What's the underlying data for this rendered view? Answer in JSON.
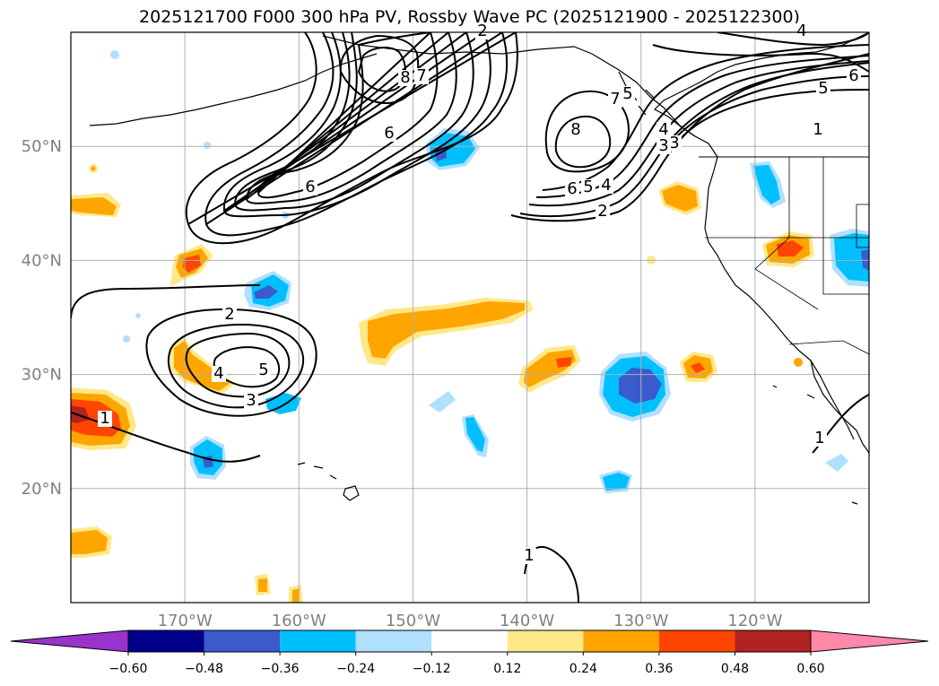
{
  "title": "2025121700 F000 300 hPa PV, Rossby Wave PC (2025121900 - 2025122300)",
  "map": {
    "projection": "equirectangular",
    "lon_range": [
      -180,
      -110
    ],
    "lat_range": [
      10,
      60
    ],
    "lon_ticks": [
      {
        "value": -170,
        "label": "170°W"
      },
      {
        "value": -160,
        "label": "160°W"
      },
      {
        "value": -150,
        "label": "150°W"
      },
      {
        "value": -140,
        "label": "140°W"
      },
      {
        "value": -130,
        "label": "130°W"
      },
      {
        "value": -120,
        "label": "120°W"
      }
    ],
    "lat_ticks": [
      {
        "value": 20,
        "label": "20°N"
      },
      {
        "value": 30,
        "label": "30°N"
      },
      {
        "value": 40,
        "label": "40°N"
      },
      {
        "value": 50,
        "label": "50°N"
      }
    ],
    "grid": true,
    "pv_contour_labels": [
      "8",
      "7",
      "6",
      "6",
      "5",
      "4",
      "3",
      "2",
      "1",
      "2",
      "3",
      "4",
      "5",
      "1",
      "1",
      "8",
      "7",
      "6",
      "5",
      "4",
      "3",
      "6",
      "5",
      "4",
      "1",
      "2"
    ]
  },
  "colorbar": {
    "ticks": [
      "−0.60",
      "−0.48",
      "−0.36",
      "−0.24",
      "−0.12",
      "0.12",
      "0.24",
      "0.36",
      "0.48",
      "0.60"
    ],
    "colors": [
      "#9933cc",
      "#00008b",
      "#3b5bcc",
      "#00bfff",
      "#b0e0ff",
      "#ffffff",
      "#ffe88a",
      "#ffa500",
      "#ff4500",
      "#b22222",
      "#ff88aa"
    ],
    "extend": "both"
  },
  "shading_colors": {
    "neg_light": "#b0e0ff",
    "neg_mid": "#00bfff",
    "neg_strong": "#3b5bcc",
    "pos_light": "#ffe88a",
    "pos_mid": "#ffa500",
    "pos_strong": "#ff4500",
    "pos_vstrong": "#b22222"
  }
}
